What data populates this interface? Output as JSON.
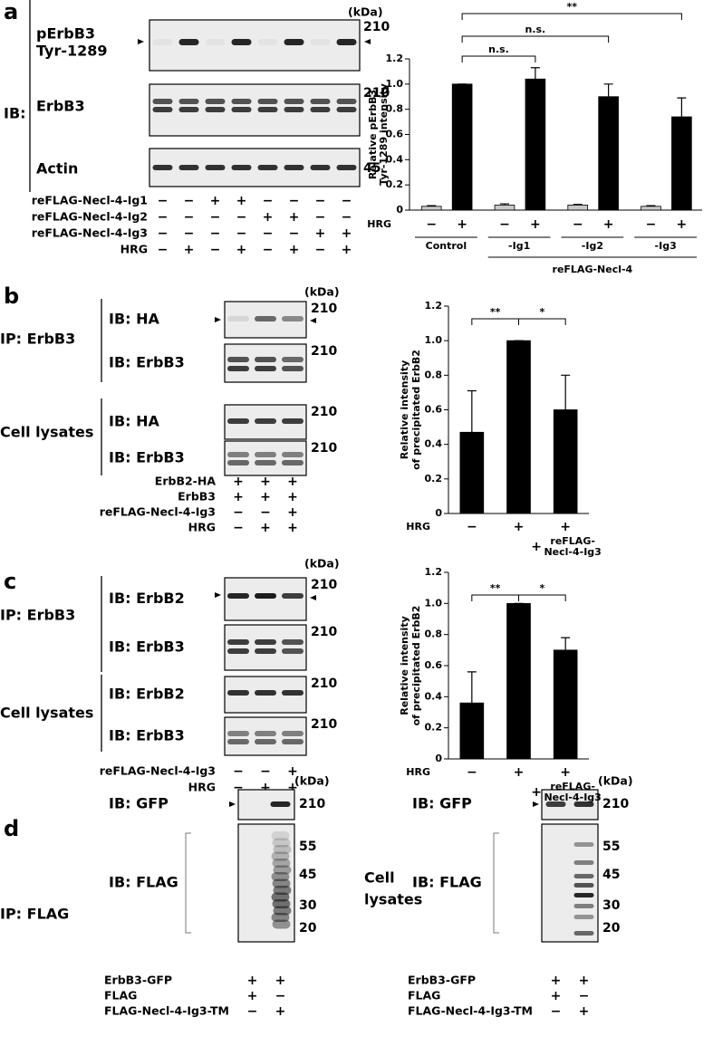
{
  "panel_a": {
    "letter": "a",
    "kda": "(kDa)",
    "ib": "IB:",
    "blots": [
      {
        "label": [
          "pErbB3",
          "Tyr-1289"
        ],
        "marker": "210"
      },
      {
        "label": [
          "ErbB3"
        ],
        "marker": "210"
      },
      {
        "label": [
          "Actin"
        ],
        "marker": "45"
      }
    ],
    "conditions": [
      {
        "name": "reFLAG-Necl-4-Ig1",
        "signs": [
          "−",
          "−",
          "+",
          "+",
          "−",
          "−",
          "−",
          "−"
        ]
      },
      {
        "name": "reFLAG-Necl-4-Ig2",
        "signs": [
          "−",
          "−",
          "−",
          "−",
          "+",
          "+",
          "−",
          "−"
        ]
      },
      {
        "name": "reFLAG-Necl-4-Ig3",
        "signs": [
          "−",
          "−",
          "−",
          "−",
          "−",
          "−",
          "+",
          "+"
        ]
      },
      {
        "name": "HRG",
        "signs": [
          "−",
          "+",
          "−",
          "+",
          "−",
          "+",
          "−",
          "+"
        ]
      }
    ]
  },
  "panel_b": {
    "letter": "b",
    "kda": "(kDa)",
    "groups": [
      {
        "label": "IP: ErbB3",
        "blots": [
          {
            "label": "IB: HA",
            "marker": "210"
          },
          {
            "label": "IB: ErbB3",
            "marker": "210"
          }
        ]
      },
      {
        "label": "Cell lysates",
        "blots": [
          {
            "label": "IB: HA",
            "marker": "210"
          },
          {
            "label": "IB: ErbB3",
            "marker": "210"
          }
        ]
      }
    ],
    "conditions": [
      {
        "name": "ErbB2-HA",
        "signs": [
          "+",
          "+",
          "+"
        ]
      },
      {
        "name": "ErbB3",
        "signs": [
          "+",
          "+",
          "+"
        ]
      },
      {
        "name": "reFLAG-Necl-4-Ig3",
        "signs": [
          "−",
          "−",
          "+"
        ]
      },
      {
        "name": "HRG",
        "signs": [
          "−",
          "+",
          "+"
        ]
      }
    ]
  },
  "panel_c": {
    "letter": "c",
    "kda": "(kDa)",
    "groups": [
      {
        "label": "IP: ErbB3",
        "blots": [
          {
            "label": "IB: ErbB2",
            "marker": "210"
          },
          {
            "label": "IB: ErbB3",
            "marker": "210"
          }
        ]
      },
      {
        "label": "Cell lysates",
        "blots": [
          {
            "label": "IB: ErbB2",
            "marker": "210"
          },
          {
            "label": "IB: ErbB3",
            "marker": "210"
          }
        ]
      }
    ],
    "conditions": [
      {
        "name": "reFLAG-Necl-4-Ig3",
        "signs": [
          "−",
          "−",
          "+"
        ]
      },
      {
        "name": "HRG",
        "signs": [
          "−",
          "+",
          "+"
        ]
      }
    ]
  },
  "panel_d": {
    "letter": "d",
    "blocks": [
      {
        "label": [
          "IP: FLAG"
        ],
        "kda": "(kDa)",
        "blots": [
          {
            "label": "IB: GFP",
            "markers": [
              "210"
            ]
          },
          {
            "label": "IB: FLAG",
            "markers": [
              "55",
              "45",
              "30",
              "20"
            ]
          }
        ],
        "conditions": [
          {
            "name": "ErbB3-GFP",
            "signs": [
              "+",
              "+"
            ]
          },
          {
            "name": "FLAG",
            "signs": [
              "+",
              "−"
            ]
          },
          {
            "name": "FLAG-Necl-4-Ig3-TM",
            "signs": [
              "−",
              "+"
            ]
          }
        ]
      },
      {
        "label": [
          "Cell",
          "lysates"
        ],
        "kda": "(kDa)",
        "blots": [
          {
            "label": "IB: GFP",
            "markers": [
              "210"
            ]
          },
          {
            "label": "IB: FLAG",
            "markers": [
              "55",
              "45",
              "30",
              "20"
            ]
          }
        ],
        "conditions": [
          {
            "name": "ErbB3-GFP",
            "signs": [
              "+",
              "+"
            ]
          },
          {
            "name": "FLAG",
            "signs": [
              "+",
              "−"
            ]
          },
          {
            "name": "FLAG-Necl-4-Ig3-TM",
            "signs": [
              "−",
              "+"
            ]
          }
        ]
      }
    ]
  },
  "chart_data": [
    {
      "type": "bar",
      "ylabel": [
        "Relative pErbB3",
        "Tyr-1289 intensity"
      ],
      "xlabel": "HRG",
      "categories": [
        "Control",
        "-Ig1",
        "-Ig2",
        "-Ig3"
      ],
      "group_label": "reFLAG-Necl-4",
      "series": [
        {
          "name": "−",
          "color": "#c8c8c8",
          "values": [
            0.03,
            0.04,
            0.04,
            0.03
          ],
          "errors": [
            0.005,
            0.01,
            0.005,
            0.005
          ]
        },
        {
          "name": "+",
          "color": "#000000",
          "values": [
            1.0,
            1.04,
            0.9,
            0.74
          ],
          "errors": [
            0,
            0.09,
            0.1,
            0.15
          ]
        }
      ],
      "ylim": [
        0,
        1.2
      ],
      "yticks": [
        0,
        0.2,
        0.4,
        0.6,
        0.8,
        {
          "value": 1,
          "label": "1.0"
        },
        1.2
      ],
      "significance": [
        "n.s.",
        "n.s.",
        "**"
      ]
    },
    {
      "type": "bar",
      "ylabel": [
        "Relative intensity",
        "of precipitated ErbB2"
      ],
      "xlabel": "HRG",
      "categories": [
        "−",
        "+",
        "+"
      ],
      "color": "#000000",
      "values": [
        0.47,
        1.0,
        0.6
      ],
      "errors": [
        0.24,
        0,
        0.2
      ],
      "extra": {
        "sign": "+",
        "label": [
          "reFLAG-",
          "Necl-4-Ig3"
        ]
      },
      "ylim": [
        0,
        1.2
      ],
      "yticks": [
        0,
        0.2,
        0.4,
        0.6,
        0.8,
        {
          "value": 1,
          "label": "1.0"
        },
        1.2
      ],
      "significance": [
        "**",
        "*"
      ]
    },
    {
      "type": "bar",
      "ylabel": [
        "Relative intensity",
        "of precipitated ErbB2"
      ],
      "xlabel": "HRG",
      "categories": [
        "−",
        "+",
        "+"
      ],
      "color": "#000000",
      "values": [
        0.36,
        1.0,
        0.7
      ],
      "errors": [
        0.2,
        0,
        0.08
      ],
      "extra": {
        "sign": "+",
        "label": [
          "reFLAG-",
          "Necl-4-Ig3"
        ]
      },
      "ylim": [
        0,
        1.2
      ],
      "yticks": [
        0,
        0.2,
        0.4,
        0.6,
        0.8,
        {
          "value": 1,
          "label": "1.0"
        },
        1.2
      ],
      "significance": [
        "**",
        "*"
      ]
    }
  ]
}
